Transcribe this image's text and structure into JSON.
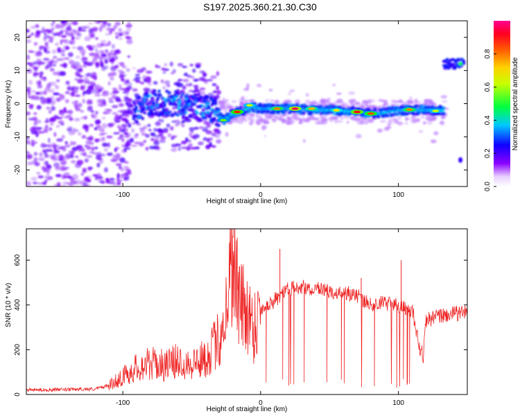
{
  "figure": {
    "title": "S197.2025.360.21.30.C30"
  },
  "chart_data": [
    {
      "type": "heatmap",
      "xlabel": "Height of straight line (km)",
      "ylabel": "Frequency (Hz)",
      "xlim": [
        -170,
        150
      ],
      "ylim": [
        -25,
        25
      ],
      "x_ticks": [
        -100,
        0,
        100
      ],
      "y_ticks": [
        -20,
        -10,
        0,
        10,
        20
      ],
      "colorbar": {
        "label": "Normalized spectral amplitude",
        "range": [
          0,
          1
        ],
        "ticks": [
          0.0,
          0.2,
          0.4,
          0.6,
          0.8
        ],
        "tick_labels": [
          "0.0",
          "0.2",
          "0.4",
          "0.6",
          "0.8"
        ],
        "colormap": [
          "#f0e0ff",
          "#7a00ff",
          "#0000ff",
          "#00d0ff",
          "#00ff00",
          "#ffff00",
          "#ff8000",
          "#ff0000",
          "#ff0080"
        ]
      },
      "ridge": [
        {
          "x": -85,
          "y": 1.0
        },
        {
          "x": -75,
          "y": 0.5
        },
        {
          "x": -62,
          "y": 0
        },
        {
          "x": -45,
          "y": -1
        },
        {
          "x": -35,
          "y": -2
        },
        {
          "x": -27,
          "y": -5
        },
        {
          "x": -20,
          "y": -3
        },
        {
          "x": -15,
          "y": -2.5
        },
        {
          "x": -7,
          "y": -1
        },
        {
          "x": 0,
          "y": -1.5
        },
        {
          "x": 10,
          "y": -1.5
        },
        {
          "x": 25,
          "y": -1.5
        },
        {
          "x": 40,
          "y": -2
        },
        {
          "x": 55,
          "y": -2
        },
        {
          "x": 70,
          "y": -2.5
        },
        {
          "x": 85,
          "y": -3
        },
        {
          "x": 100,
          "y": -2
        },
        {
          "x": 115,
          "y": -2
        },
        {
          "x": 130,
          "y": -2
        }
      ],
      "hotspots": [
        {
          "x": -17,
          "y": -2.5,
          "amp": 0.85
        },
        {
          "x": 12,
          "y": -1.5,
          "amp": 0.75
        },
        {
          "x": 25,
          "y": -1.5,
          "amp": 0.95
        },
        {
          "x": 37,
          "y": -1.5,
          "amp": 0.7
        },
        {
          "x": 55,
          "y": -2,
          "amp": 0.65
        },
        {
          "x": 70,
          "y": -2.5,
          "amp": 0.9
        },
        {
          "x": 80,
          "y": -3,
          "amp": 0.8
        },
        {
          "x": 108,
          "y": -1.8,
          "amp": 0.75
        },
        {
          "x": 127,
          "y": -2.2,
          "amp": 0.6
        },
        {
          "x": -27,
          "y": -5,
          "amp": 0.55
        },
        {
          "x": -8,
          "y": -0.5,
          "amp": 0.6
        }
      ],
      "side_band": {
        "x_range": [
          133,
          148
        ],
        "y": 12,
        "amp": 0.5
      }
    },
    {
      "type": "line",
      "xlabel": "Height of straight line (km)",
      "ylabel": "SNR (10 * v/v)",
      "xlim": [
        -170,
        150
      ],
      "ylim": [
        0,
        740
      ],
      "x_ticks": [
        -100,
        0,
        100
      ],
      "y_ticks": [
        0,
        200,
        400,
        600
      ],
      "color": "#ee2222",
      "series": [
        {
          "values": [
            [
              -170,
              20
            ],
            [
              -140,
              22
            ],
            [
              -120,
              25
            ],
            [
              -110,
              40
            ],
            [
              -100,
              80
            ],
            [
              -90,
              120
            ],
            [
              -80,
              140
            ],
            [
              -70,
              130
            ],
            [
              -60,
              150
            ],
            [
              -50,
              140
            ],
            [
              -40,
              160
            ],
            [
              -30,
              250
            ],
            [
              -25,
              380
            ],
            [
              -22,
              550
            ],
            [
              -20,
              700
            ],
            [
              -18,
              500
            ],
            [
              -15,
              400
            ],
            [
              -10,
              380
            ],
            [
              -5,
              300
            ],
            [
              0,
              380
            ],
            [
              10,
              420
            ],
            [
              20,
              470
            ],
            [
              30,
              480
            ],
            [
              40,
              470
            ],
            [
              50,
              460
            ],
            [
              60,
              460
            ],
            [
              70,
              440
            ],
            [
              80,
              400
            ],
            [
              90,
              410
            ],
            [
              100,
              400
            ],
            [
              110,
              380
            ],
            [
              115,
              220
            ],
            [
              118,
              170
            ],
            [
              120,
              330
            ],
            [
              130,
              350
            ],
            [
              140,
              360
            ],
            [
              150,
              370
            ]
          ]
        }
      ],
      "peaks": [
        {
          "x": -20,
          "y": 740
        },
        {
          "x": -17,
          "y": 700
        },
        {
          "x": 14,
          "y": 650
        },
        {
          "x": 102,
          "y": 600
        },
        {
          "x": 73,
          "y": 520
        }
      ]
    }
  ]
}
